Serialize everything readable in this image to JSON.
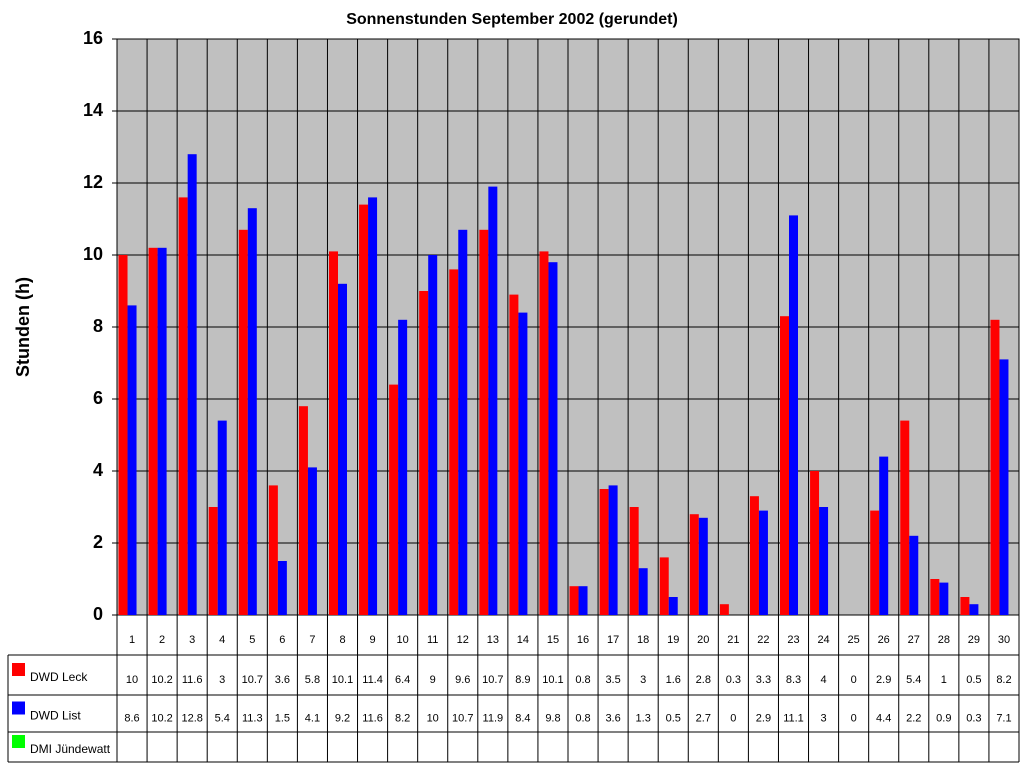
{
  "chart_data": {
    "type": "bar",
    "title": "Sonnenstunden September 2002 (gerundet)",
    "y_label": "Stunden (h)",
    "categories": [
      "1",
      "2",
      "3",
      "4",
      "5",
      "6",
      "7",
      "8",
      "9",
      "10",
      "11",
      "12",
      "13",
      "14",
      "15",
      "16",
      "17",
      "18",
      "19",
      "20",
      "21",
      "22",
      "23",
      "24",
      "25",
      "26",
      "27",
      "28",
      "29",
      "30"
    ],
    "series": [
      {
        "name": "DWD Leck",
        "color": "#ff0000",
        "values": [
          10,
          10.2,
          11.6,
          3,
          10.7,
          3.6,
          5.8,
          10.1,
          11.4,
          6.4,
          9,
          9.6,
          10.7,
          8.9,
          10.1,
          0.8,
          3.5,
          3,
          1.6,
          2.8,
          0.3,
          3.3,
          8.3,
          4,
          0,
          2.9,
          5.4,
          1,
          0.5,
          8.2
        ]
      },
      {
        "name": "DWD List",
        "color": "#0000ff",
        "values": [
          8.6,
          10.2,
          12.8,
          5.4,
          11.3,
          1.5,
          4.1,
          9.2,
          11.6,
          8.2,
          10,
          10.7,
          11.9,
          8.4,
          9.8,
          0.8,
          3.6,
          1.3,
          0.5,
          2.7,
          0,
          2.9,
          11.1,
          3,
          0,
          4.4,
          2.2,
          0.9,
          0.3,
          7.1
        ]
      },
      {
        "name": "DMI Jündewatt",
        "color": "#00ff00",
        "values": [
          null,
          null,
          null,
          null,
          null,
          null,
          null,
          null,
          null,
          null,
          null,
          null,
          null,
          null,
          null,
          null,
          null,
          null,
          null,
          null,
          null,
          null,
          null,
          null,
          null,
          null,
          null,
          null,
          null,
          null
        ]
      }
    ],
    "ylim": [
      0,
      16
    ],
    "yticks": [
      0,
      2,
      4,
      6,
      8,
      10,
      12,
      14,
      16
    ],
    "grid": true,
    "plot_background": "#c0c0c0"
  }
}
